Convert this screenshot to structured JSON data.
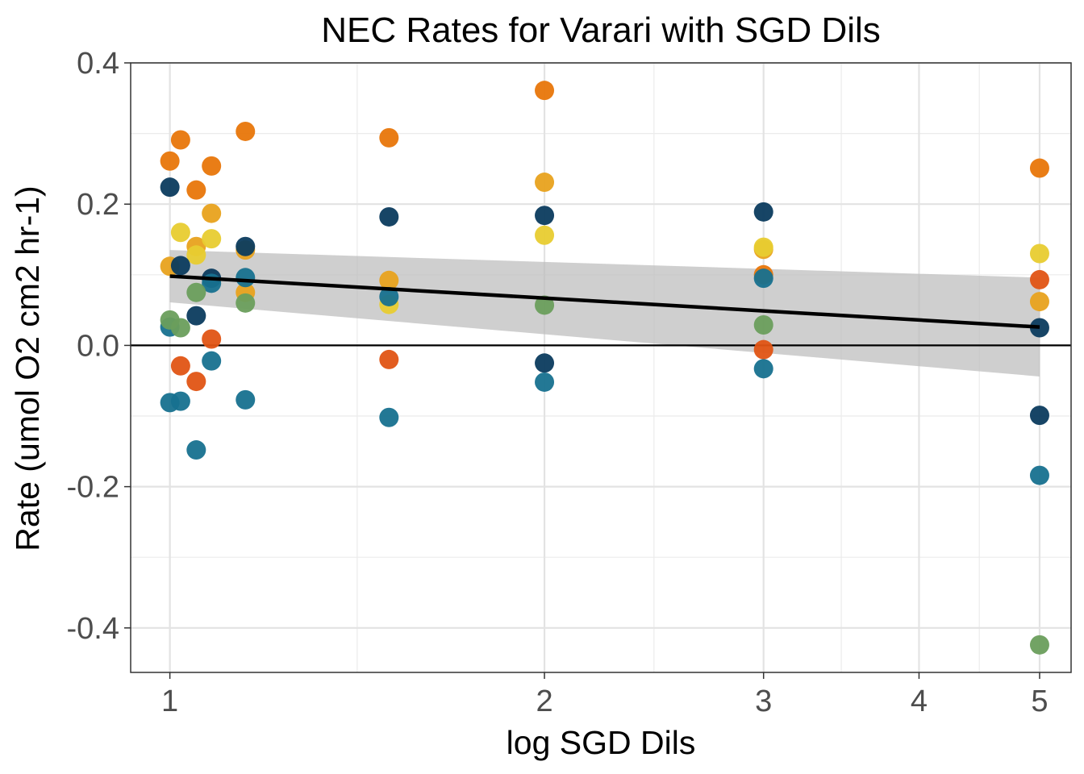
{
  "chart_data": {
    "type": "scatter",
    "title": "NEC Rates for Varari with SGD Dils",
    "xlabel": "log SGD Dils",
    "ylabel": "Rate (umol O2 cm2 hr-1)",
    "x_scale": "log",
    "xlim": [
      0.93,
      5.3
    ],
    "ylim": [
      -0.463,
      0.4
    ],
    "x_ticks": [
      1,
      2,
      3,
      4,
      5
    ],
    "x_tick_labels": [
      "1",
      "2",
      "3",
      "4",
      "5"
    ],
    "y_ticks": [
      0.4,
      0.2,
      0.0,
      -0.2,
      -0.4
    ],
    "y_tick_labels": [
      "0.4",
      "0.2",
      "0.0",
      "-0.2",
      "-0.4"
    ],
    "grid": true,
    "zero_line": 0,
    "fit": {
      "x": [
        1,
        5
      ],
      "y": [
        0.098,
        0.026
      ],
      "ci_lower": [
        0.061,
        -0.044
      ],
      "ci_upper": [
        0.135,
        0.096
      ]
    },
    "colors": {
      "orange": "#E8760A",
      "gold": "#E8A21E",
      "yellow": "#E8CC30",
      "dark_navy": "#0B3B5E",
      "teal": "#17718F",
      "green": "#6A9E5C",
      "red_orange": "#E05414",
      "fit_line": "#000000",
      "ci_band": "#bdbdbd"
    },
    "points": [
      {
        "x": 1.0,
        "y": 0.261,
        "c": "orange"
      },
      {
        "x": 1.02,
        "y": 0.291,
        "c": "orange"
      },
      {
        "x": 1.05,
        "y": 0.22,
        "c": "orange"
      },
      {
        "x": 1.08,
        "y": 0.254,
        "c": "orange"
      },
      {
        "x": 1.15,
        "y": 0.303,
        "c": "orange"
      },
      {
        "x": 1.08,
        "y": 0.187,
        "c": "gold"
      },
      {
        "x": 1.0,
        "y": 0.112,
        "c": "gold"
      },
      {
        "x": 1.05,
        "y": 0.14,
        "c": "gold"
      },
      {
        "x": 1.15,
        "y": 0.135,
        "c": "gold"
      },
      {
        "x": 1.15,
        "y": 0.075,
        "c": "gold"
      },
      {
        "x": 1.02,
        "y": 0.16,
        "c": "yellow"
      },
      {
        "x": 1.08,
        "y": 0.151,
        "c": "yellow"
      },
      {
        "x": 1.05,
        "y": 0.128,
        "c": "yellow"
      },
      {
        "x": 1.0,
        "y": 0.224,
        "c": "dark_navy"
      },
      {
        "x": 1.02,
        "y": 0.113,
        "c": "dark_navy"
      },
      {
        "x": 1.15,
        "y": 0.14,
        "c": "dark_navy"
      },
      {
        "x": 1.05,
        "y": 0.042,
        "c": "dark_navy"
      },
      {
        "x": 1.08,
        "y": 0.095,
        "c": "dark_navy"
      },
      {
        "x": 1.08,
        "y": 0.088,
        "c": "teal"
      },
      {
        "x": 1.15,
        "y": 0.096,
        "c": "teal"
      },
      {
        "x": 1.0,
        "y": 0.026,
        "c": "teal"
      },
      {
        "x": 1.08,
        "y": -0.022,
        "c": "teal"
      },
      {
        "x": 1.0,
        "y": -0.081,
        "c": "teal"
      },
      {
        "x": 1.02,
        "y": -0.079,
        "c": "teal"
      },
      {
        "x": 1.15,
        "y": -0.077,
        "c": "teal"
      },
      {
        "x": 1.05,
        "y": -0.148,
        "c": "teal"
      },
      {
        "x": 1.05,
        "y": 0.075,
        "c": "green"
      },
      {
        "x": 1.15,
        "y": 0.06,
        "c": "green"
      },
      {
        "x": 1.0,
        "y": 0.036,
        "c": "green"
      },
      {
        "x": 1.02,
        "y": 0.025,
        "c": "green"
      },
      {
        "x": 1.08,
        "y": 0.009,
        "c": "red_orange"
      },
      {
        "x": 1.02,
        "y": -0.029,
        "c": "red_orange"
      },
      {
        "x": 1.05,
        "y": -0.051,
        "c": "red_orange"
      },
      {
        "x": 1.5,
        "y": 0.294,
        "c": "orange"
      },
      {
        "x": 1.5,
        "y": 0.092,
        "c": "gold"
      },
      {
        "x": 1.5,
        "y": 0.058,
        "c": "yellow"
      },
      {
        "x": 1.5,
        "y": 0.182,
        "c": "dark_navy"
      },
      {
        "x": 1.5,
        "y": 0.069,
        "c": "teal"
      },
      {
        "x": 1.5,
        "y": -0.102,
        "c": "teal"
      },
      {
        "x": 1.5,
        "y": -0.02,
        "c": "red_orange"
      },
      {
        "x": 2.0,
        "y": 0.361,
        "c": "orange"
      },
      {
        "x": 2.0,
        "y": 0.231,
        "c": "gold"
      },
      {
        "x": 2.0,
        "y": 0.156,
        "c": "yellow"
      },
      {
        "x": 2.0,
        "y": 0.184,
        "c": "dark_navy"
      },
      {
        "x": 2.0,
        "y": -0.025,
        "c": "dark_navy"
      },
      {
        "x": 2.0,
        "y": 0.057,
        "c": "green"
      },
      {
        "x": 2.0,
        "y": -0.052,
        "c": "teal"
      },
      {
        "x": 3.0,
        "y": 0.1,
        "c": "orange"
      },
      {
        "x": 3.0,
        "y": 0.136,
        "c": "gold"
      },
      {
        "x": 3.0,
        "y": 0.139,
        "c": "yellow"
      },
      {
        "x": 3.0,
        "y": 0.189,
        "c": "dark_navy"
      },
      {
        "x": 3.0,
        "y": 0.095,
        "c": "teal"
      },
      {
        "x": 3.0,
        "y": 0.029,
        "c": "green"
      },
      {
        "x": 3.0,
        "y": -0.006,
        "c": "red_orange"
      },
      {
        "x": 3.0,
        "y": -0.033,
        "c": "teal"
      },
      {
        "x": 5.0,
        "y": 0.251,
        "c": "orange"
      },
      {
        "x": 5.0,
        "y": 0.13,
        "c": "yellow"
      },
      {
        "x": 5.0,
        "y": 0.093,
        "c": "red_orange"
      },
      {
        "x": 5.0,
        "y": 0.062,
        "c": "gold"
      },
      {
        "x": 5.0,
        "y": 0.025,
        "c": "dark_navy"
      },
      {
        "x": 5.0,
        "y": -0.099,
        "c": "dark_navy"
      },
      {
        "x": 5.0,
        "y": -0.184,
        "c": "teal"
      },
      {
        "x": 5.0,
        "y": -0.424,
        "c": "green"
      }
    ]
  }
}
